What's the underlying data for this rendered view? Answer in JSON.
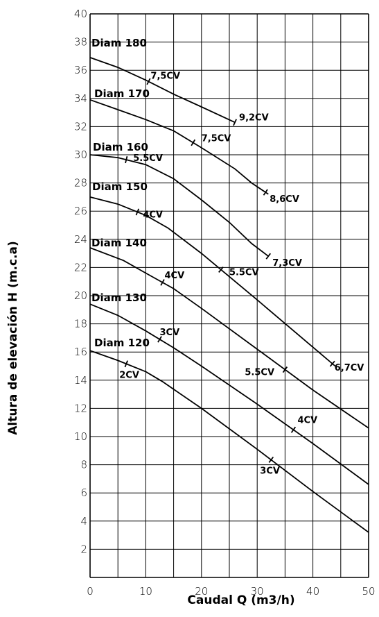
{
  "chart_data": {
    "type": "line",
    "title": "",
    "xlabel": "Caudal Q (m3/h)",
    "ylabel": "Altura de elevación H (m.c.a)",
    "xlim": [
      0,
      50
    ],
    "ylim": [
      0,
      40
    ],
    "x_ticks": [
      "0",
      "10",
      "20",
      "30",
      "40",
      "50"
    ],
    "y_ticks": [
      "2",
      "4",
      "6",
      "8",
      "10",
      "12",
      "14",
      "16",
      "18",
      "20",
      "22",
      "24",
      "26",
      "28",
      "30",
      "32",
      "34",
      "36",
      "38",
      "40"
    ],
    "grid": true,
    "line_color": "#000000",
    "series": [
      {
        "name": "Diam 180",
        "points": [
          [
            0,
            36.9
          ],
          [
            5,
            36.2
          ],
          [
            10,
            35.3
          ],
          [
            15,
            34.3
          ],
          [
            20,
            33.4
          ],
          [
            26,
            32.3
          ]
        ],
        "powers": [
          {
            "x": 10.5,
            "label": "7,5CV"
          },
          {
            "x": 26,
            "label": "9,2CV"
          }
        ]
      },
      {
        "name": "Diam 170",
        "points": [
          [
            0,
            33.9
          ],
          [
            5,
            33.2
          ],
          [
            10,
            32.5
          ],
          [
            15,
            31.7
          ],
          [
            20,
            30.5
          ],
          [
            26,
            29
          ],
          [
            29,
            28
          ],
          [
            32,
            27.2
          ]
        ],
        "powers": [
          {
            "x": 18.5,
            "label": "7,5CV"
          },
          {
            "x": 31.5,
            "label": "8,6CV"
          }
        ]
      },
      {
        "name": "Diam 160",
        "points": [
          [
            0,
            30
          ],
          [
            5,
            29.8
          ],
          [
            10,
            29.3
          ],
          [
            15,
            28.3
          ],
          [
            20,
            26.8
          ],
          [
            25,
            25.2
          ],
          [
            29,
            23.7
          ],
          [
            32,
            22.8
          ]
        ],
        "powers": [
          {
            "x": 6.5,
            "label": "5.5CV"
          },
          {
            "x": 32,
            "label": "7,3CV"
          }
        ]
      },
      {
        "name": "Diam 150",
        "points": [
          [
            0,
            27
          ],
          [
            5,
            26.5
          ],
          [
            10,
            25.7
          ],
          [
            14,
            24.8
          ],
          [
            20,
            23
          ],
          [
            30,
            19.7
          ],
          [
            44,
            15
          ]
        ],
        "powers": [
          {
            "x": 8.5,
            "label": "4CV"
          },
          {
            "x": 23.5,
            "label": "5.5CV"
          },
          {
            "x": 43.5,
            "label": "6,7CV"
          }
        ]
      },
      {
        "name": "Diam 140",
        "points": [
          [
            0,
            23.4
          ],
          [
            6,
            22.5
          ],
          [
            10,
            21.6
          ],
          [
            15,
            20.5
          ],
          [
            20,
            19.1
          ],
          [
            30,
            16.2
          ],
          [
            40,
            13.3
          ],
          [
            50,
            10.6
          ]
        ],
        "powers": [
          {
            "x": 13,
            "label": "4CV"
          },
          {
            "x": 35,
            "label": "5.5CV"
          }
        ]
      },
      {
        "name": "Diam 130",
        "points": [
          [
            0,
            19.4
          ],
          [
            5,
            18.6
          ],
          [
            10,
            17.5
          ],
          [
            15,
            16.3
          ],
          [
            20,
            15
          ],
          [
            30,
            12.3
          ],
          [
            40,
            9.5
          ],
          [
            50,
            6.6
          ]
        ],
        "powers": [
          {
            "x": 12.5,
            "label": "3CV"
          },
          {
            "x": 36.5,
            "label": "4CV"
          }
        ]
      },
      {
        "name": "Diam 120",
        "points": [
          [
            0,
            16.1
          ],
          [
            5,
            15.4
          ],
          [
            10,
            14.6
          ],
          [
            13,
            13.9
          ],
          [
            20,
            12
          ],
          [
            30,
            9.1
          ],
          [
            40,
            6.1
          ],
          [
            50,
            3.2
          ]
        ],
        "powers": [
          {
            "x": 6.5,
            "label": "2CV"
          },
          {
            "x": 32.5,
            "label": "3CV"
          }
        ]
      }
    ]
  }
}
